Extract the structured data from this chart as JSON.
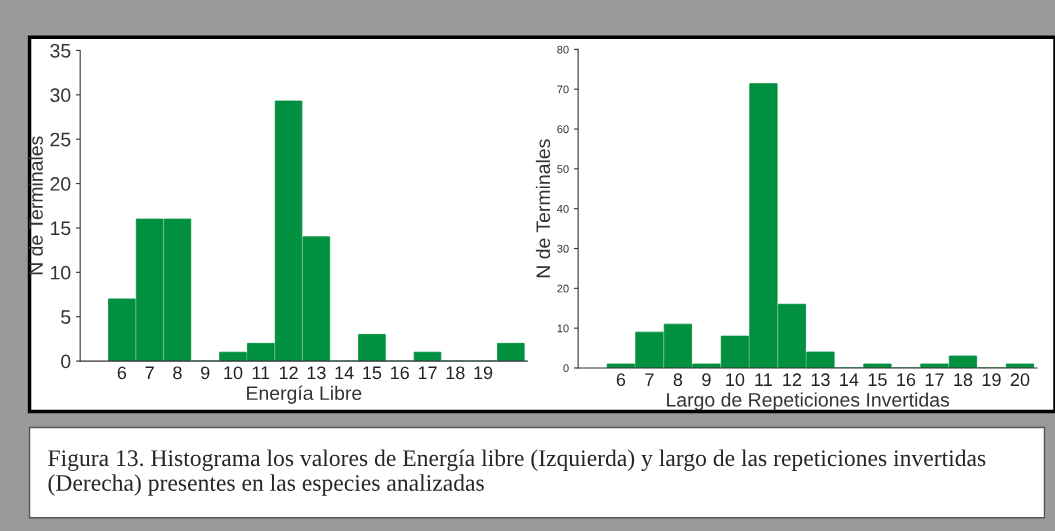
{
  "chart_data": [
    {
      "type": "bar",
      "xlabel": "Energía Libre",
      "ylabel": "N de Terminales",
      "categories": [
        "6",
        "7",
        "8",
        "9",
        "10",
        "11",
        "12",
        "13",
        "14",
        "15",
        "16",
        "17",
        "18",
        "19",
        null
      ],
      "values": [
        7,
        16,
        16,
        0,
        1,
        2,
        29.3,
        14,
        0,
        3,
        0,
        1,
        0,
        0,
        2
      ],
      "color": "#009040",
      "ylim": [
        0,
        35
      ],
      "yticks": [
        0,
        5,
        10,
        15,
        20,
        25,
        30,
        35
      ],
      "grid": false,
      "annotations": [
        "Figura 13. Histograma los valores de Energía libre (Izquierda) y largo de las repeticiones invertidas (Derecha) presentes en las especies analizadas"
      ]
    },
    {
      "type": "bar",
      "xlabel": "Largo de Repeticiones Invertidas",
      "ylabel": "N de Terminales",
      "categories": [
        "6",
        "7",
        "8",
        "9",
        "10",
        "11",
        "12",
        "13",
        "14",
        "15",
        "16",
        "17",
        "18",
        "19",
        "20"
      ],
      "values": [
        1,
        9,
        11,
        1,
        8,
        71.4,
        16,
        4,
        0,
        1,
        0,
        1,
        3,
        0,
        1
      ],
      "color": "#009040",
      "ylim": [
        0,
        80
      ],
      "yticks": [
        0,
        10,
        20,
        30,
        40,
        50,
        60,
        70,
        80
      ],
      "grid": false
    }
  ]
}
